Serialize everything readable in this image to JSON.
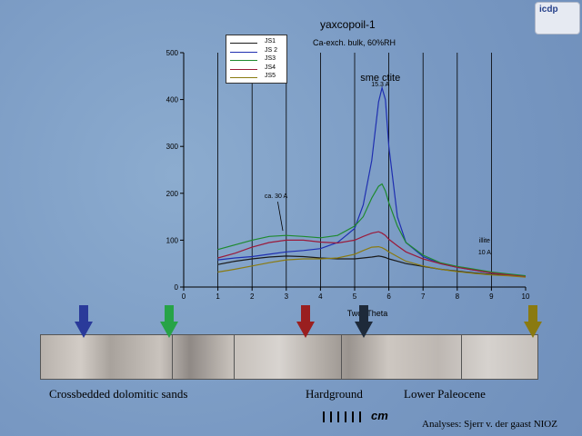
{
  "chart_data": {
    "type": "line",
    "title": "yaxcopoil-1",
    "subtitle": "Ca-exch. bulk, 60%RH",
    "xlabel": "Two_Theta",
    "xlim": [
      0,
      10
    ],
    "ylim": [
      0,
      500
    ],
    "xticks": [
      0,
      1,
      2,
      3,
      4,
      5,
      6,
      7,
      8,
      9,
      10
    ],
    "yticks": [
      0,
      100,
      200,
      300,
      400,
      500
    ],
    "grid_x": true,
    "legend_position": "top-left",
    "x": [
      1,
      1.5,
      2,
      2.5,
      3,
      3.5,
      4,
      4.5,
      5,
      5.25,
      5.5,
      5.7,
      5.8,
      5.9,
      6,
      6.25,
      6.5,
      7,
      7.5,
      8,
      8.5,
      9,
      9.5,
      10
    ],
    "series": [
      {
        "name": "JS1",
        "color": "#1a1a1a",
        "values": [
          48,
          55,
          60,
          64,
          66,
          65,
          62,
          60,
          60,
          62,
          64,
          66,
          65,
          63,
          60,
          55,
          50,
          44,
          38,
          34,
          30,
          27,
          25,
          22
        ]
      },
      {
        "name": "JS 2",
        "color": "#1f2fb0",
        "values": [
          58,
          62,
          65,
          70,
          75,
          78,
          82,
          95,
          125,
          175,
          270,
          395,
          425,
          400,
          300,
          150,
          95,
          65,
          50,
          42,
          36,
          30,
          26,
          22
        ]
      },
      {
        "name": "JS3",
        "color": "#1e8a2e",
        "values": [
          80,
          90,
          100,
          108,
          110,
          108,
          105,
          110,
          130,
          150,
          190,
          215,
          220,
          205,
          180,
          130,
          95,
          68,
          52,
          44,
          38,
          32,
          28,
          24
        ]
      },
      {
        "name": "JS4",
        "color": "#9a1a3a",
        "values": [
          62,
          72,
          85,
          95,
          100,
          100,
          96,
          94,
          100,
          108,
          115,
          118,
          115,
          110,
          102,
          88,
          75,
          60,
          50,
          42,
          36,
          30,
          26,
          22
        ]
      },
      {
        "name": "JS5",
        "color": "#8a7a10",
        "values": [
          32,
          38,
          45,
          52,
          58,
          60,
          60,
          62,
          70,
          78,
          85,
          86,
          84,
          80,
          75,
          65,
          55,
          45,
          38,
          33,
          29,
          26,
          24,
          21
        ]
      }
    ],
    "annotations": [
      {
        "text": "sme ctite",
        "x": 5.75,
        "y": 440,
        "size": 11
      },
      {
        "text": "15.3 A",
        "x": 5.75,
        "y": 428,
        "size": 7
      },
      {
        "text": "ca. 30 A",
        "x": 2.7,
        "y": 190,
        "size": 7
      },
      {
        "text": "illite",
        "x": 8.8,
        "y": 95,
        "size": 7
      },
      {
        "text": "10 A",
        "x": 8.8,
        "y": 70,
        "size": 7
      }
    ]
  },
  "legend_title": "",
  "logo_text": "icdp",
  "arrows": [
    {
      "name": "blue-arrow",
      "color": "#2a3a9a"
    },
    {
      "name": "green-arrow",
      "color": "#27a347"
    },
    {
      "name": "red-arrow",
      "color": "#9a1f1f"
    },
    {
      "name": "dark-arrow",
      "color": "#1e2a3a"
    },
    {
      "name": "olive-arrow",
      "color": "#8a7a10"
    }
  ],
  "captions": {
    "left": "Crossbedded dolomitic sands",
    "middle": "Hardground",
    "right": "Lower Paleocene"
  },
  "scale_unit": "cm",
  "credit": "Analyses: Sjerr v. der gaast NIOZ"
}
